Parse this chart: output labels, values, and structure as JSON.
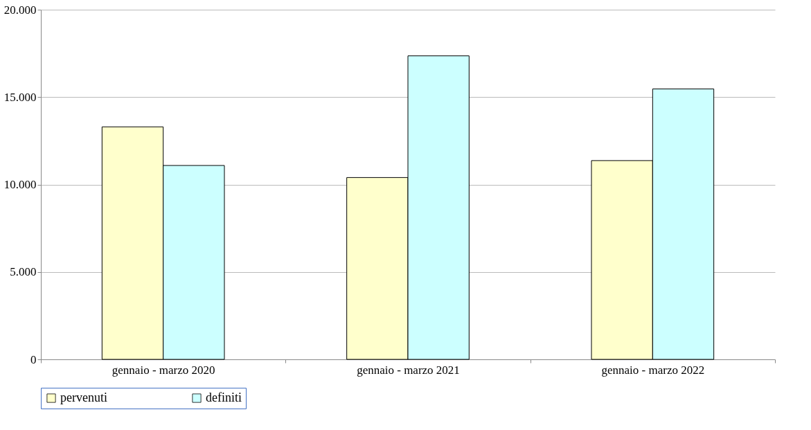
{
  "chart_data": {
    "type": "bar",
    "categories": [
      "gennaio - marzo 2020",
      "gennaio - marzo 2021",
      "gennaio - marzo 2022"
    ],
    "series": [
      {
        "name": "pervenuti",
        "color": "#ffffcc",
        "values": [
          13300,
          10400,
          11370
        ]
      },
      {
        "name": "definiti",
        "color": "#ccffff",
        "values": [
          11090,
          17360,
          15470
        ]
      }
    ],
    "ylim": [
      0,
      20000
    ],
    "yticks": [
      {
        "value": 0,
        "label": "0"
      },
      {
        "value": 5000,
        "label": "5.000"
      },
      {
        "value": 10000,
        "label": "10.000"
      },
      {
        "value": 15000,
        "label": "15.000"
      },
      {
        "value": 20000,
        "label": "20.000"
      }
    ],
    "grid": "y",
    "legend": "bottom"
  }
}
